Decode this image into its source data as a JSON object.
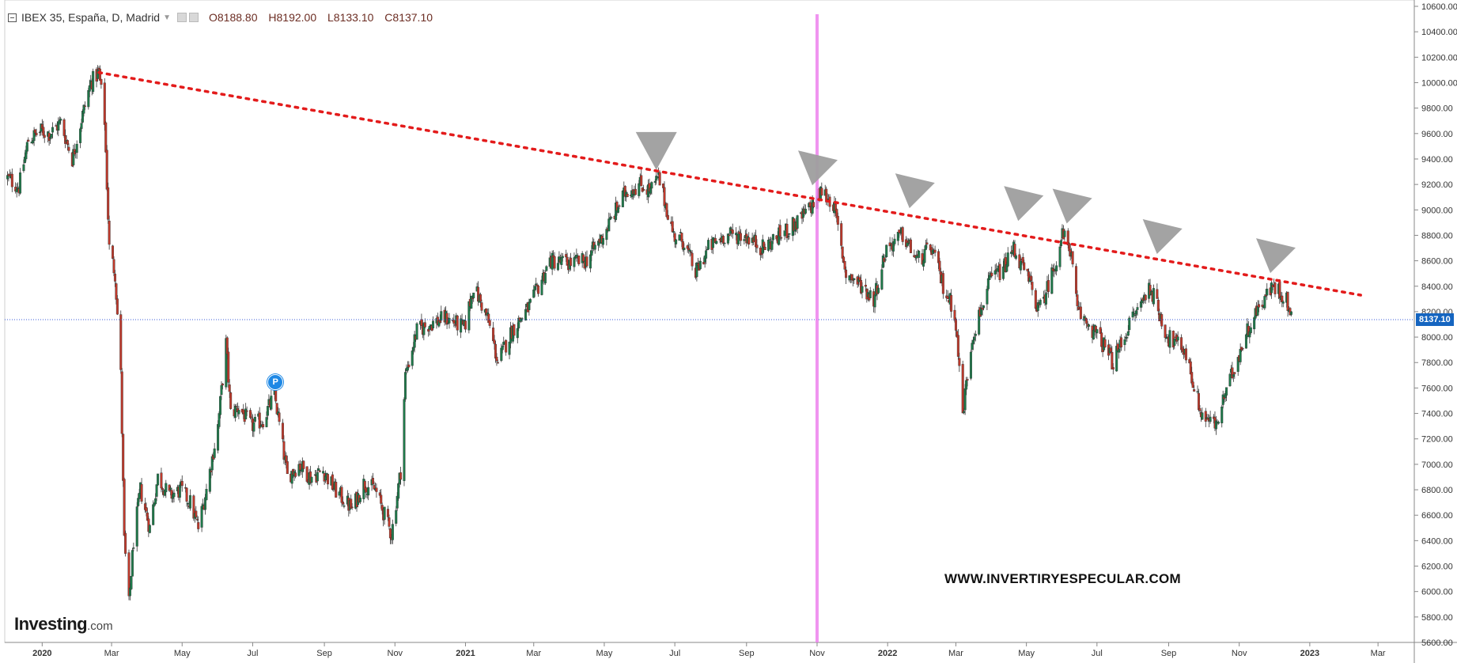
{
  "header": {
    "symbol": "IBEX 35, España, D, Madrid",
    "open": "O8188.80",
    "high": "H8192.00",
    "low": "L8133.10",
    "close": "C8137.10"
  },
  "brand": {
    "name": "Investing",
    "suffix": ".com"
  },
  "watermark": "WWW.INVERTIRYESPECULAR.COM",
  "badge": "P",
  "last_price_label": "8137.10",
  "colors": {
    "up": "#1e7a4a",
    "down": "#c0392b",
    "trendline": "#e31b1b",
    "marker": "#9e9e9e",
    "vline": "#ee82ee",
    "hline": "#3a5bd9",
    "badge": "#1e88e5",
    "price_tag": "#1565c0"
  },
  "chart_data": {
    "type": "candlestick",
    "title": "IBEX 35, España, D, Madrid",
    "ylim": [
      5600,
      10600
    ],
    "y_ticks": [
      5600,
      5800,
      6000,
      6200,
      6400,
      6600,
      6800,
      7000,
      7200,
      7400,
      7600,
      7800,
      8000,
      8200,
      8400,
      8600,
      8800,
      9000,
      9200,
      9400,
      9600,
      9800,
      10000,
      10200,
      10400,
      10600
    ],
    "y_tick_labels": [
      "5600.00",
      "5800.00",
      "6000.00",
      "6200.00",
      "6400.00",
      "6600.00",
      "6800.00",
      "7000.00",
      "7200.00",
      "7400.00",
      "7600.00",
      "7800.00",
      "8000.00",
      "8200.00",
      "8400.00",
      "8600.00",
      "8800.00",
      "9000.00",
      "9200.00",
      "9400.00",
      "9600.00",
      "9800.00",
      "10000.00",
      "10200.00",
      "10400.00",
      "10600.00"
    ],
    "x_range": [
      "2019-12-01",
      "2023-03-31"
    ],
    "x_ticks": [
      {
        "date": "2020-01-01",
        "label": "2020",
        "bold": true
      },
      {
        "date": "2020-03-01",
        "label": "Mar"
      },
      {
        "date": "2020-05-01",
        "label": "May"
      },
      {
        "date": "2020-07-01",
        "label": "Jul"
      },
      {
        "date": "2020-09-01",
        "label": "Sep"
      },
      {
        "date": "2020-11-01",
        "label": "Nov"
      },
      {
        "date": "2021-01-01",
        "label": "2021",
        "bold": true
      },
      {
        "date": "2021-03-01",
        "label": "Mar"
      },
      {
        "date": "2021-05-01",
        "label": "May"
      },
      {
        "date": "2021-07-01",
        "label": "Jul"
      },
      {
        "date": "2021-09-01",
        "label": "Sep"
      },
      {
        "date": "2021-11-01",
        "label": "Nov"
      },
      {
        "date": "2022-01-01",
        "label": "2022",
        "bold": true
      },
      {
        "date": "2022-03-01",
        "label": "Mar"
      },
      {
        "date": "2022-05-01",
        "label": "May"
      },
      {
        "date": "2022-07-01",
        "label": "Jul"
      },
      {
        "date": "2022-09-01",
        "label": "Sep"
      },
      {
        "date": "2022-11-01",
        "label": "Nov"
      },
      {
        "date": "2023-01-01",
        "label": "2023",
        "bold": true
      },
      {
        "date": "2023-03-01",
        "label": "Mar"
      }
    ],
    "close_path": [
      [
        "2019-12-02",
        9250
      ],
      [
        "2019-12-12",
        9180
      ],
      [
        "2019-12-20",
        9550
      ],
      [
        "2019-12-31",
        9620
      ],
      [
        "2020-01-08",
        9600
      ],
      [
        "2020-01-17",
        9690
      ],
      [
        "2020-01-27",
        9400
      ],
      [
        "2020-02-05",
        9750
      ],
      [
        "2020-02-12",
        10000
      ],
      [
        "2020-02-19",
        10080
      ],
      [
        "2020-02-24",
        9700
      ],
      [
        "2020-02-28",
        8700
      ],
      [
        "2020-03-04",
        8500
      ],
      [
        "2020-03-09",
        7700
      ],
      [
        "2020-03-12",
        6400
      ],
      [
        "2020-03-16",
        5900
      ],
      [
        "2020-03-20",
        6400
      ],
      [
        "2020-03-26",
        6800
      ],
      [
        "2020-04-03",
        6500
      ],
      [
        "2020-04-10",
        6900
      ],
      [
        "2020-04-20",
        6750
      ],
      [
        "2020-04-30",
        6800
      ],
      [
        "2020-05-08",
        6700
      ],
      [
        "2020-05-15",
        6500
      ],
      [
        "2020-05-22",
        6800
      ],
      [
        "2020-06-01",
        7300
      ],
      [
        "2020-06-08",
        7950
      ],
      [
        "2020-06-12",
        7400
      ],
      [
        "2020-06-19",
        7450
      ],
      [
        "2020-06-30",
        7300
      ],
      [
        "2020-07-10",
        7350
      ],
      [
        "2020-07-20",
        7550
      ],
      [
        "2020-07-31",
        6900
      ],
      [
        "2020-08-10",
        7000
      ],
      [
        "2020-08-20",
        6900
      ],
      [
        "2020-08-31",
        6950
      ],
      [
        "2020-09-10",
        6800
      ],
      [
        "2020-09-25",
        6650
      ],
      [
        "2020-10-05",
        6850
      ],
      [
        "2020-10-15",
        6800
      ],
      [
        "2020-10-29",
        6450
      ],
      [
        "2020-11-06",
        6950
      ],
      [
        "2020-11-10",
        7700
      ],
      [
        "2020-11-20",
        8050
      ],
      [
        "2020-11-30",
        8100
      ],
      [
        "2020-12-15",
        8150
      ],
      [
        "2020-12-31",
        8070
      ],
      [
        "2021-01-08",
        8400
      ],
      [
        "2021-01-20",
        8150
      ],
      [
        "2021-01-29",
        7800
      ],
      [
        "2021-02-10",
        8050
      ],
      [
        "2021-02-26",
        8250
      ],
      [
        "2021-03-15",
        8600
      ],
      [
        "2021-03-31",
        8580
      ],
      [
        "2021-04-15",
        8600
      ],
      [
        "2021-04-30",
        8800
      ],
      [
        "2021-05-20",
        9150
      ],
      [
        "2021-06-01",
        9200
      ],
      [
        "2021-06-10",
        9150
      ],
      [
        "2021-06-17",
        9250
      ],
      [
        "2021-06-30",
        8800
      ],
      [
        "2021-07-09",
        8750
      ],
      [
        "2021-07-19",
        8500
      ],
      [
        "2021-07-30",
        8700
      ],
      [
        "2021-08-13",
        8800
      ],
      [
        "2021-08-31",
        8800
      ],
      [
        "2021-09-15",
        8700
      ],
      [
        "2021-09-30",
        8800
      ],
      [
        "2021-10-15",
        8900
      ],
      [
        "2021-10-29",
        9050
      ],
      [
        "2021-11-05",
        9150
      ],
      [
        "2021-11-15",
        9050
      ],
      [
        "2021-11-26",
        8500
      ],
      [
        "2021-12-10",
        8400
      ],
      [
        "2021-12-20",
        8300
      ],
      [
        "2021-12-31",
        8700
      ],
      [
        "2022-01-14",
        8800
      ],
      [
        "2022-01-27",
        8600
      ],
      [
        "2022-02-08",
        8700
      ],
      [
        "2022-02-18",
        8400
      ],
      [
        "2022-02-28",
        8200
      ],
      [
        "2022-03-07",
        7400
      ],
      [
        "2022-03-15",
        8000
      ],
      [
        "2022-03-31",
        8450
      ],
      [
        "2022-04-12",
        8550
      ],
      [
        "2022-04-20",
        8700
      ],
      [
        "2022-05-05",
        8400
      ],
      [
        "2022-05-12",
        8200
      ],
      [
        "2022-05-25",
        8550
      ],
      [
        "2022-06-01",
        8800
      ],
      [
        "2022-06-08",
        8700
      ],
      [
        "2022-06-14",
        8200
      ],
      [
        "2022-06-24",
        8100
      ],
      [
        "2022-07-06",
        7950
      ],
      [
        "2022-07-15",
        7800
      ],
      [
        "2022-07-29",
        8100
      ],
      [
        "2022-08-16",
        8400
      ],
      [
        "2022-08-31",
        8000
      ],
      [
        "2022-09-15",
        7900
      ],
      [
        "2022-09-29",
        7400
      ],
      [
        "2022-10-12",
        7300
      ],
      [
        "2022-10-20",
        7550
      ],
      [
        "2022-10-31",
        7850
      ],
      [
        "2022-11-10",
        8100
      ],
      [
        "2022-11-22",
        8300
      ],
      [
        "2022-12-01",
        8400
      ],
      [
        "2022-12-12",
        8300
      ],
      [
        "2022-12-16",
        8137.1
      ]
    ],
    "trendline": {
      "start": [
        "2020-02-19",
        10080
      ],
      "end": [
        "2023-02-14",
        8330
      ]
    },
    "horizontal_line": 8137.1,
    "vertical_line_date": "2021-11-01",
    "resistance_markers": [
      {
        "date": "2021-06-15",
        "value": 9450,
        "direction": "down"
      },
      {
        "date": "2021-11-01",
        "value": 9330,
        "direction": "down-right"
      },
      {
        "date": "2022-01-24",
        "value": 9150,
        "direction": "down-right"
      },
      {
        "date": "2022-04-28",
        "value": 9050,
        "direction": "down-right"
      },
      {
        "date": "2022-06-09",
        "value": 9030,
        "direction": "down-right"
      },
      {
        "date": "2022-08-26",
        "value": 8790,
        "direction": "down-right"
      },
      {
        "date": "2022-12-02",
        "value": 8640,
        "direction": "down-right"
      }
    ],
    "badge": {
      "date": "2020-07-20",
      "value": 7650,
      "label": "P"
    }
  }
}
